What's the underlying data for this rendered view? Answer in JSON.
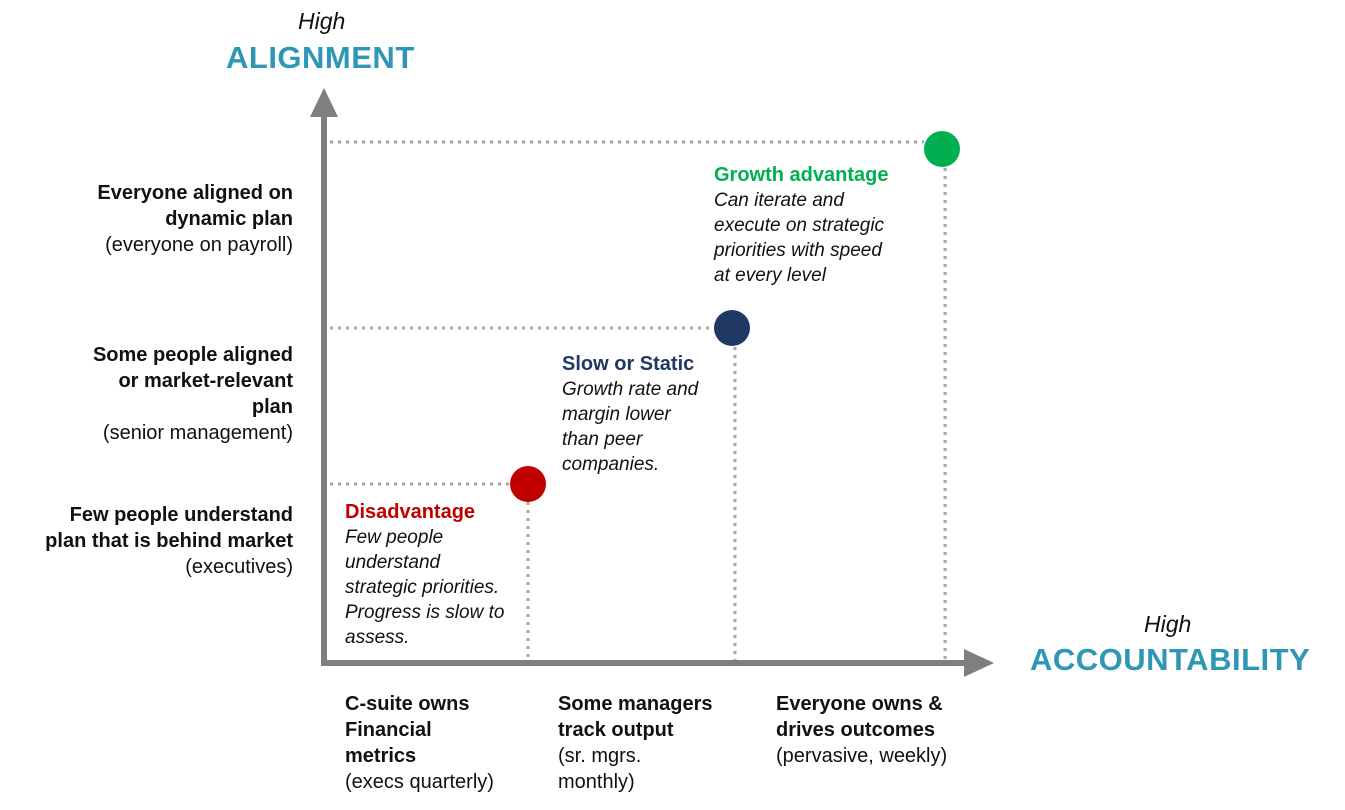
{
  "y_axis": {
    "qualifier": "High",
    "title": "ALIGNMENT"
  },
  "x_axis": {
    "qualifier": "High",
    "title": "ACCOUNTABILITY"
  },
  "alignment_levels": [
    {
      "bold": "Few people understand\nplan that is behind market",
      "plain": "(executives)"
    },
    {
      "bold": "Some people aligned\nor market-relevant\nplan",
      "plain": "(senior management)"
    },
    {
      "bold": "Everyone aligned on\ndynamic plan",
      "plain": "(everyone on payroll)"
    }
  ],
  "accountability_levels": [
    {
      "bold": "C-suite owns\nFinancial\nmetrics",
      "plain": "(execs quarterly)"
    },
    {
      "bold": "Some managers\ntrack output",
      "plain": "(sr. mgrs.\nmonthly)"
    },
    {
      "bold": "Everyone owns &\ndrives outcomes",
      "plain": "(pervasive, weekly)"
    }
  ],
  "states": [
    {
      "title": "Disadvantage",
      "color": "#c00000",
      "description": "Few people\nunderstand\nstrategic priorities.\nProgress is slow to\nassess."
    },
    {
      "title": "Slow or Static",
      "color": "#1f3864",
      "description": "Growth rate and\nmargin lower\nthan peer\ncompanies."
    },
    {
      "title": "Growth advantage",
      "color": "#00b050",
      "description": "Can iterate and\nexecute on strategic\npriorities with speed\nat every level"
    }
  ],
  "colors": {
    "axis": "#7f7f7f",
    "guide": "#a6a6a6",
    "accent": "#2f97b6"
  }
}
